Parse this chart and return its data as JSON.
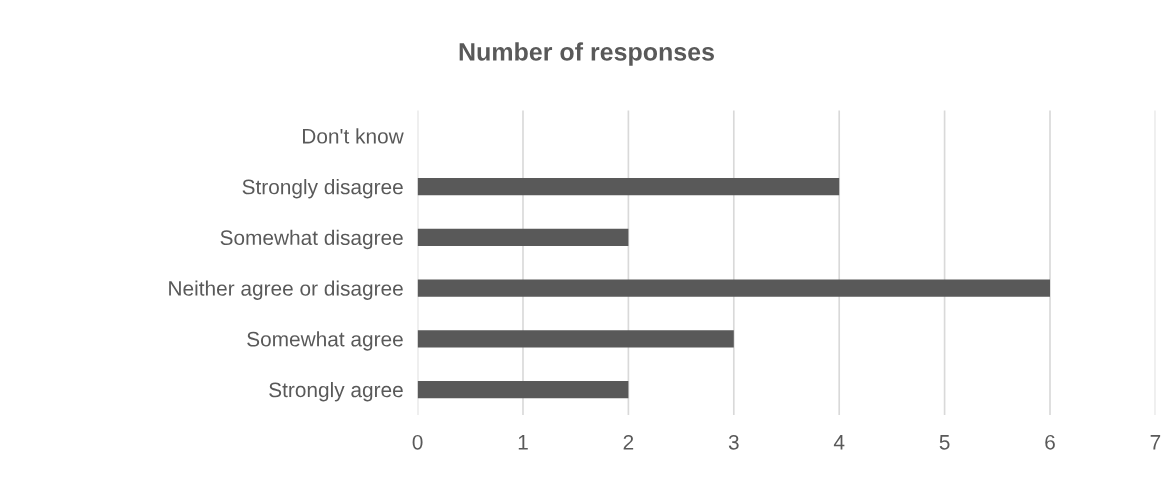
{
  "chart_data": {
    "type": "bar",
    "orientation": "horizontal",
    "title": "Number of responses",
    "categories": [
      "Don't know",
      "Strongly disagree",
      "Somewhat disagree",
      "Neither agree or disagree",
      "Somewhat agree",
      "Strongly agree"
    ],
    "values": [
      0,
      4,
      2,
      6,
      3,
      2
    ],
    "color": "#595959",
    "xlim": [
      0,
      7
    ],
    "xticks": [
      0,
      1,
      2,
      3,
      4,
      5,
      6,
      7
    ],
    "grid": "x"
  }
}
